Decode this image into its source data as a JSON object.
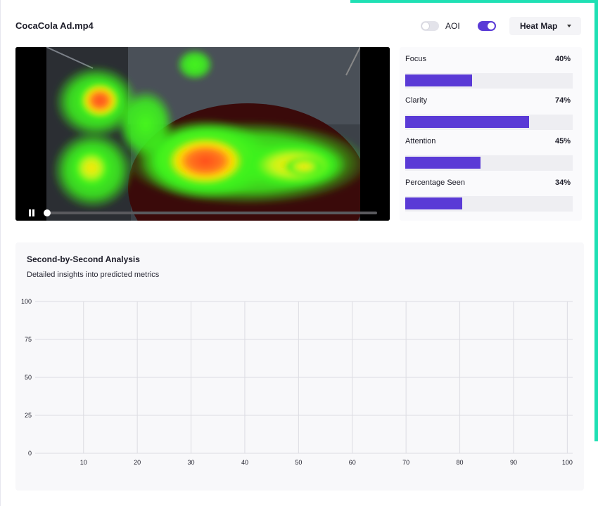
{
  "file": {
    "name": "CocaCola Ad.mp4"
  },
  "controls": {
    "aoi_label": "AOI",
    "aoi_on": false,
    "heatmap_on": true,
    "view_select": "Heat Map"
  },
  "player": {
    "state": "paused",
    "progress": 0.0
  },
  "metrics": [
    {
      "name": "Focus",
      "value": 40,
      "display": "40%"
    },
    {
      "name": "Clarity",
      "value": 74,
      "display": "74%"
    },
    {
      "name": "Attention",
      "value": 45,
      "display": "45%"
    },
    {
      "name": "Percentage Seen",
      "value": 34,
      "display": "34%"
    }
  ],
  "analysis": {
    "title": "Second-by-Second Analysis",
    "subtitle": "Detailed insights into predicted metrics"
  },
  "chart_data": {
    "type": "line",
    "x_ticks": [
      "10",
      "20",
      "30",
      "40",
      "50",
      "60",
      "70",
      "80",
      "90",
      "100"
    ],
    "y_ticks": [
      "0",
      "25",
      "50",
      "75",
      "100"
    ],
    "xlim": [
      1,
      101
    ],
    "ylim": [
      0,
      100
    ],
    "grid": true,
    "series": []
  },
  "colors": {
    "accent": "#5a3ad6",
    "brand_teal": "#1fe0b4"
  }
}
